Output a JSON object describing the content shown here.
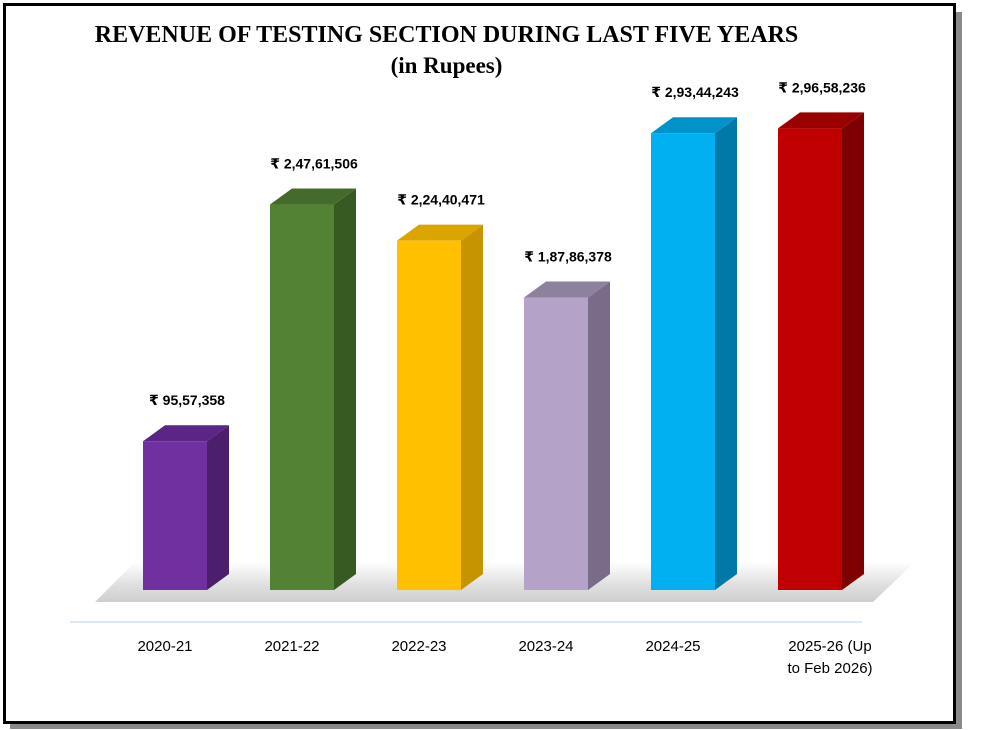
{
  "chart_data": {
    "type": "bar",
    "title": "REVENUE OF TESTING SECTION DURING LAST FIVE YEARS",
    "subtitle": "(in Rupees)",
    "categories": [
      "2020-21",
      "2021-22",
      "2022-23",
      "2023-24",
      "2024-25",
      "2025-26 (Up to Feb 2026)"
    ],
    "category_lines": [
      [
        "2020-21"
      ],
      [
        "2021-22"
      ],
      [
        "2022-23"
      ],
      [
        "2023-24"
      ],
      [
        "2024-25"
      ],
      [
        "2025-26 (Up",
        "to Feb 2026)"
      ]
    ],
    "values": [
      9557358,
      24761506,
      22440471,
      18786378,
      29344243,
      29658236
    ],
    "data_labels": [
      "₹ 95,57,358",
      "₹ 2,47,61,506",
      "₹ 2,24,40,471",
      "₹ 1,87,86,378",
      "₹ 2,93,44,243",
      "₹ 2,96,58,236"
    ],
    "colors": [
      "#7030a0",
      "#548235",
      "#ffc000",
      "#b4a2c8",
      "#00b0f0",
      "#c00000"
    ],
    "side_colors": [
      "#4b1f6b",
      "#375a22",
      "#c69400",
      "#796c88",
      "#0079a8",
      "#7f0000"
    ],
    "top_colors": [
      "#5a2585",
      "#446b2b",
      "#dba500",
      "#8e819d",
      "#0093c9",
      "#9a0000"
    ],
    "ylim": [
      0,
      30000000
    ],
    "grid": false,
    "legend": "none"
  }
}
